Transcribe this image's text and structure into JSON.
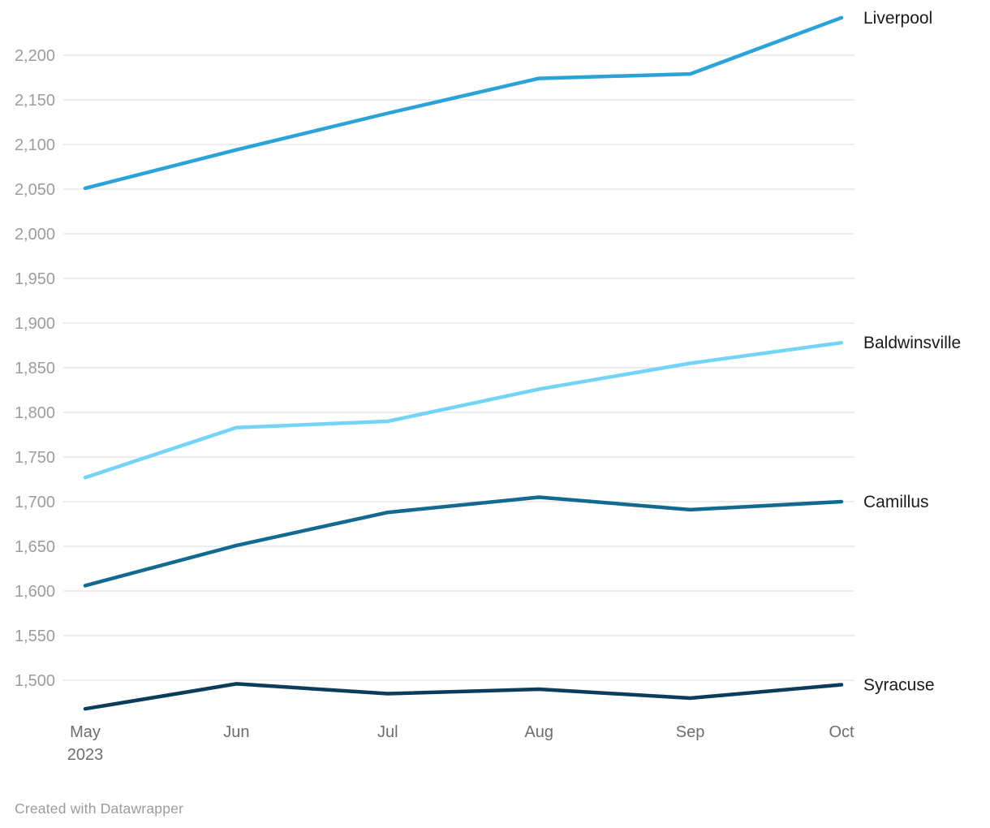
{
  "footer": {
    "credit": "Created with Datawrapper"
  },
  "colors": {
    "gridline": "#e7e7e7",
    "y_tick_label": "#9c9c9c",
    "x_tick_label": "#6e6e6e",
    "series_label": "#1a1a1a"
  },
  "chart_data": {
    "type": "line",
    "x": [
      "May 2023",
      "Jun",
      "Jul",
      "Aug",
      "Sep",
      "Oct"
    ],
    "x_tick_labels": [
      [
        "May",
        "2023"
      ],
      [
        "Jun"
      ],
      [
        "Jul"
      ],
      [
        "Aug"
      ],
      [
        "Sep"
      ],
      [
        "Oct"
      ]
    ],
    "series": [
      {
        "name": "Liverpool",
        "color": "#2ba3d9",
        "values": [
          2051,
          2094,
          2135,
          2174,
          2179,
          2242
        ]
      },
      {
        "name": "Baldwinsville",
        "color": "#74d4f7",
        "values": [
          1727,
          1783,
          1790,
          1826,
          1855,
          1878
        ]
      },
      {
        "name": "Camillus",
        "color": "#136a90",
        "values": [
          1606,
          1651,
          1688,
          1705,
          1691,
          1700
        ]
      },
      {
        "name": "Syracuse",
        "color": "#0c3c5c",
        "values": [
          1468,
          1496,
          1485,
          1490,
          1480,
          1495
        ]
      }
    ],
    "y_ticks": [
      2200,
      2150,
      2100,
      2050,
      2000,
      1950,
      1900,
      1850,
      1800,
      1750,
      1700,
      1650,
      1600,
      1550,
      1500
    ],
    "ylim": [
      1455,
      2250
    ],
    "grid": true,
    "legend_position": "right-of-line-end",
    "title": "",
    "xlabel": "",
    "ylabel": ""
  }
}
